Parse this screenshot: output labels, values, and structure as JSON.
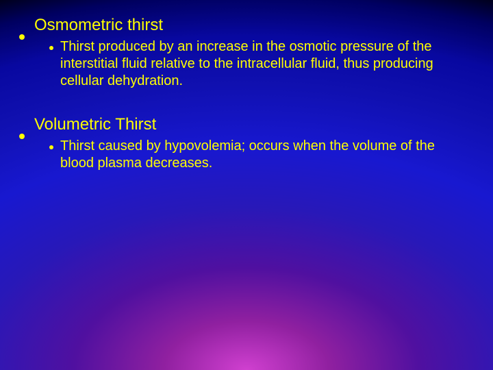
{
  "background": {
    "gradient_type": "radial",
    "center_color": "#d040d0",
    "mid_colors": [
      "#9020a0",
      "#5010a0",
      "#2818b8",
      "#1818d0",
      "#1010b0",
      "#0808a0"
    ],
    "edge_color": "#000060",
    "corner_color": "#000000"
  },
  "text_color": "#ffff00",
  "bullet_color": "#ffff00",
  "title_fontsize": 24,
  "body_fontsize": 20,
  "sections": [
    {
      "title": "Osmometric thirst",
      "body": "Thirst produced by an increase in the osmotic pressure of the interstitial fluid relative to the intracellular fluid, thus producing cellular dehydration."
    },
    {
      "title": "Volumetric Thirst",
      "body": "Thirst caused by hypovolemia; occurs when the volume of the blood plasma decreases."
    }
  ]
}
